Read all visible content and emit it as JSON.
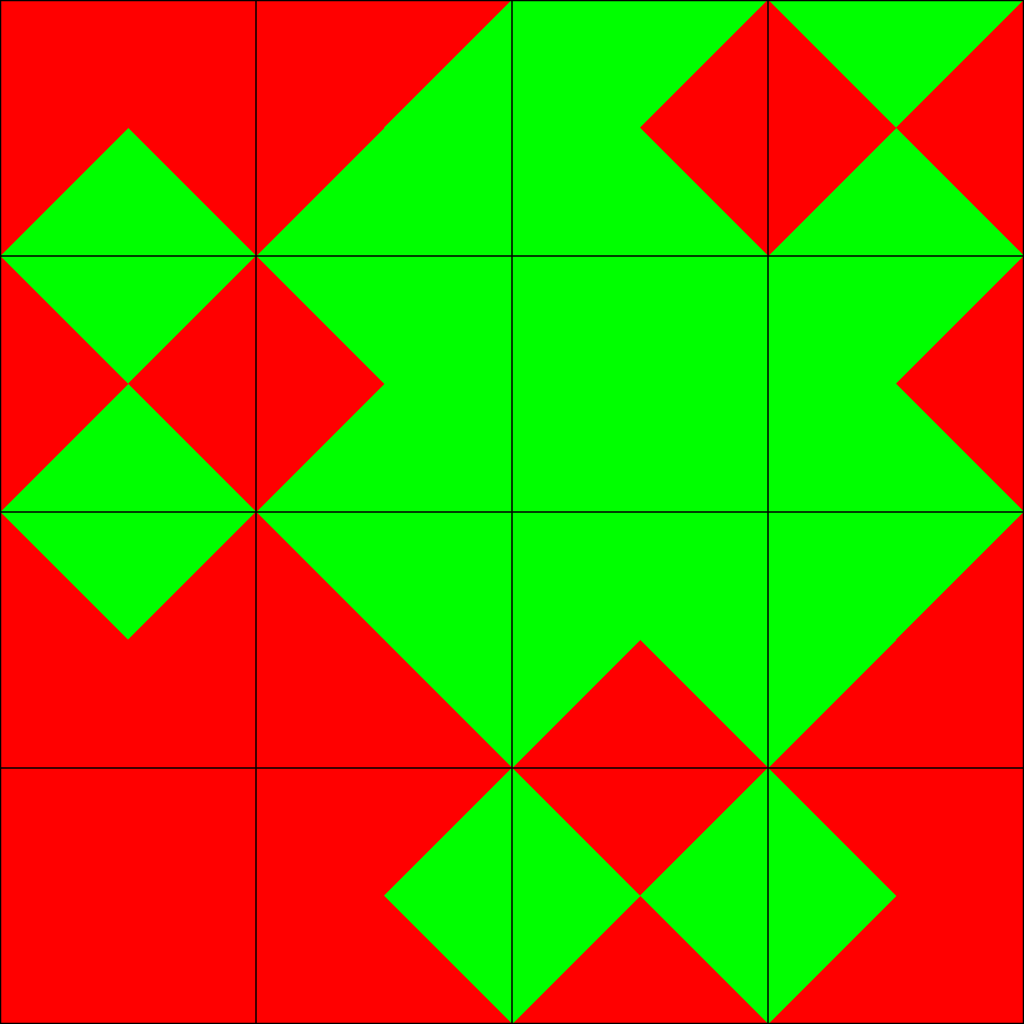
{
  "colors": {
    "red": "#ff0000",
    "green": "#00ff00",
    "line": "#000000"
  },
  "grid": {
    "rows": 4,
    "cols": 4
  },
  "tiles": [
    {
      "row": 0,
      "col": 0,
      "north": "red",
      "east": "red",
      "south": "green",
      "west": "red"
    },
    {
      "row": 0,
      "col": 1,
      "north": "red",
      "east": "green",
      "south": "green",
      "west": "red"
    },
    {
      "row": 0,
      "col": 2,
      "north": "green",
      "east": "red",
      "south": "green",
      "west": "green"
    },
    {
      "row": 0,
      "col": 3,
      "north": "green",
      "east": "red",
      "south": "green",
      "west": "red"
    },
    {
      "row": 1,
      "col": 0,
      "north": "green",
      "east": "red",
      "south": "green",
      "west": "red"
    },
    {
      "row": 1,
      "col": 1,
      "north": "green",
      "east": "green",
      "south": "green",
      "west": "red"
    },
    {
      "row": 1,
      "col": 2,
      "north": "green",
      "east": "green",
      "south": "green",
      "west": "green"
    },
    {
      "row": 1,
      "col": 3,
      "north": "green",
      "east": "red",
      "south": "green",
      "west": "green"
    },
    {
      "row": 2,
      "col": 0,
      "north": "green",
      "east": "red",
      "south": "red",
      "west": "red"
    },
    {
      "row": 2,
      "col": 1,
      "north": "green",
      "east": "green",
      "south": "red",
      "west": "red"
    },
    {
      "row": 2,
      "col": 2,
      "north": "green",
      "east": "green",
      "south": "red",
      "west": "green"
    },
    {
      "row": 2,
      "col": 3,
      "north": "green",
      "east": "red",
      "south": "red",
      "west": "green"
    },
    {
      "row": 3,
      "col": 0,
      "north": "red",
      "east": "red",
      "south": "red",
      "west": "red"
    },
    {
      "row": 3,
      "col": 1,
      "north": "red",
      "east": "green",
      "south": "red",
      "west": "red"
    },
    {
      "row": 3,
      "col": 2,
      "north": "red",
      "east": "green",
      "south": "red",
      "west": "green"
    },
    {
      "row": 3,
      "col": 3,
      "north": "red",
      "east": "red",
      "south": "red",
      "west": "green"
    }
  ]
}
